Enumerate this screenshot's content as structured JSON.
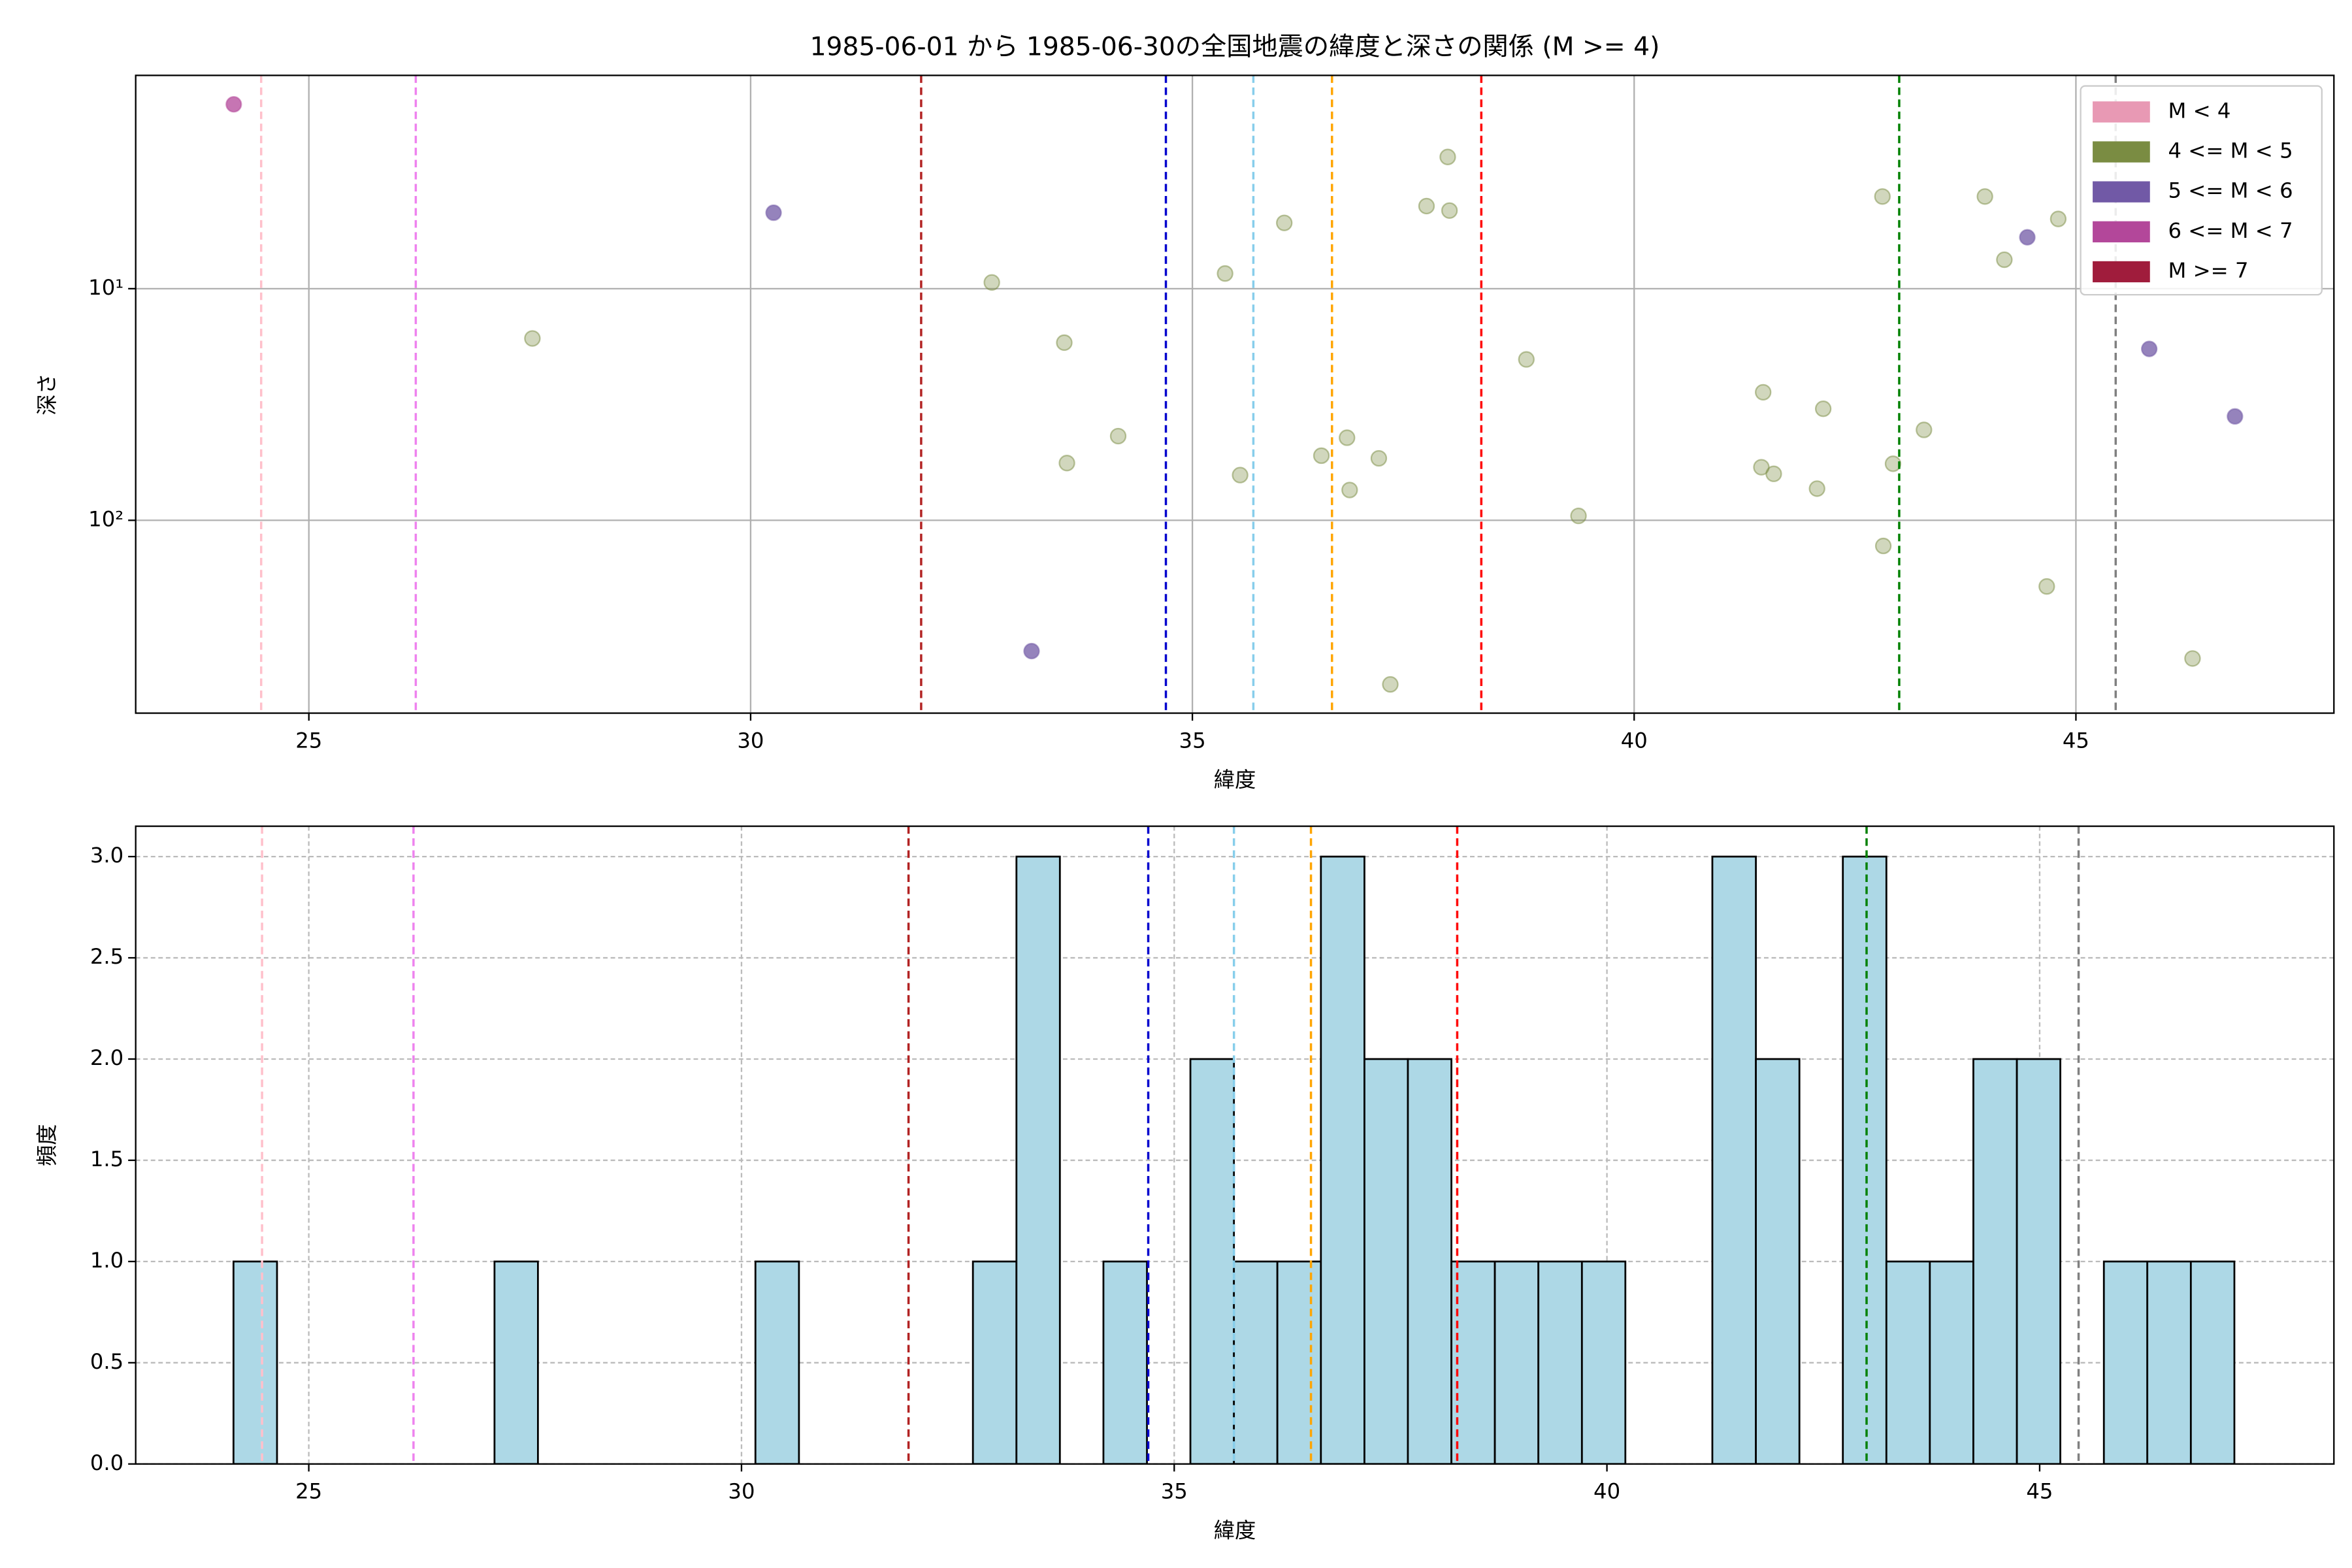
{
  "chart_data": [
    {
      "type": "scatter",
      "title": "1985-06-01 から 1985-06-30の全国地震の緯度と深さの関係 (M >= 4)",
      "x_label": "緯度",
      "y_label": "深さ",
      "xlim": [
        23.04,
        47.92
      ],
      "xticks": [
        25,
        30,
        35,
        40,
        45
      ],
      "ylim": [
        1.2,
        680
      ],
      "y_scale": "log",
      "y_inverted": true,
      "yticks": [
        {
          "value": 10,
          "label": "10¹"
        },
        {
          "value": 100,
          "label": "10²"
        }
      ],
      "grid": true,
      "grid_style": "solid",
      "legend": "upper right",
      "series": [
        {
          "name": "M < 4",
          "color": "#e899b4",
          "x": [],
          "values": []
        },
        {
          "name": "4 <= M < 5",
          "color": "#7a8c42",
          "x": [
            27.53,
            32.73,
            33.55,
            33.58,
            34.16,
            35.37,
            36.04,
            35.54,
            36.46,
            36.75,
            36.78,
            37.11,
            37.65,
            37.89,
            37.91,
            37.24,
            38.78,
            39.37,
            41.46,
            41.44,
            41.58,
            42.14,
            42.07,
            42.81,
            42.93,
            42.82,
            43.28,
            43.97,
            44.19,
            44.8,
            44.67,
            46.32
          ],
          "values": [
            16.4,
            9.4,
            17.1,
            56.6,
            43.3,
            8.6,
            5.2,
            63.8,
            52.6,
            44,
            74,
            54,
            4.4,
            2.7,
            4.6,
            511,
            20.2,
            95.7,
            28,
            59,
            63,
            33,
            73,
            4.0,
            57,
            129,
            40.7,
            4.0,
            7.5,
            5.0,
            193,
            395
          ]
        },
        {
          "name": "5 <= M < 6",
          "color": "#7159a6",
          "x": [
            30.26,
            33.18,
            44.45,
            45.83,
            46.8
          ],
          "values": [
            4.7,
            367,
            6.0,
            18.2,
            35.6
          ]
        },
        {
          "name": "6 <= M < 7",
          "color": "#b3479a",
          "x": [
            24.15
          ],
          "values": [
            1.6
          ]
        },
        {
          "name": "M >= 7",
          "color": "#a01c3c",
          "x": [],
          "values": []
        }
      ],
      "vlines": [
        {
          "value": 24.46,
          "color": "pink"
        },
        {
          "value": 26.21,
          "color": "violet"
        },
        {
          "value": 31.93,
          "color": "#b22222"
        },
        {
          "value": 34.7,
          "color": "#0000cd"
        },
        {
          "value": 35.69,
          "color": "#87ceeb"
        },
        {
          "value": 36.58,
          "color": "orange"
        },
        {
          "value": 38.27,
          "color": "red"
        },
        {
          "value": 43.0,
          "color": "green"
        },
        {
          "value": 45.45,
          "color": "gray"
        }
      ]
    },
    {
      "type": "histogram",
      "x_label": "緯度",
      "y_label": "頻度",
      "xlim": [
        23.0,
        48.4
      ],
      "xticks": [
        25,
        30,
        35,
        40,
        45
      ],
      "ylim": [
        0,
        3.15
      ],
      "yticks": [
        {
          "value": 0,
          "label": "0.0"
        },
        {
          "value": 0.5,
          "label": "0.5"
        },
        {
          "value": 1,
          "label": "1.0"
        },
        {
          "value": 1.5,
          "label": "1.5"
        },
        {
          "value": 2,
          "label": "2.0"
        },
        {
          "value": 2.5,
          "label": "2.5"
        },
        {
          "value": 3,
          "label": "3.0"
        }
      ],
      "grid": true,
      "grid_style": "dashed",
      "color": "#add8e6",
      "edge_color": "#000000",
      "bins": [
        24.13,
        24.633,
        25.135,
        25.638,
        26.14,
        26.643,
        27.146,
        27.648,
        28.151,
        28.653,
        29.156,
        29.659,
        30.161,
        30.664,
        31.166,
        31.669,
        32.172,
        32.674,
        33.177,
        33.679,
        34.182,
        34.685,
        35.187,
        35.69,
        36.192,
        36.695,
        37.198,
        37.7,
        38.203,
        38.705,
        39.208,
        39.711,
        40.213,
        40.716,
        41.218,
        41.721,
        42.224,
        42.726,
        43.229,
        43.731,
        44.234,
        44.737,
        45.239,
        45.742,
        46.244,
        46.747,
        47.25
      ],
      "values": [
        1,
        0,
        0,
        0,
        0,
        0,
        1,
        0,
        0,
        0,
        0,
        0,
        1,
        0,
        0,
        0,
        0,
        1,
        3,
        0,
        1,
        0,
        2,
        1,
        1,
        3,
        2,
        2,
        1,
        1,
        1,
        1,
        0,
        0,
        3,
        2,
        0,
        3,
        1,
        1,
        2,
        2,
        0,
        1,
        1,
        1
      ],
      "vlines": [
        {
          "value": 24.46,
          "color": "pink"
        },
        {
          "value": 26.21,
          "color": "violet"
        },
        {
          "value": 31.93,
          "color": "#b22222"
        },
        {
          "value": 34.7,
          "color": "#0000cd"
        },
        {
          "value": 35.69,
          "color": "#87ceeb"
        },
        {
          "value": 36.58,
          "color": "orange"
        },
        {
          "value": 38.27,
          "color": "red"
        },
        {
          "value": 43.0,
          "color": "green"
        },
        {
          "value": 45.45,
          "color": "gray"
        }
      ]
    }
  ]
}
